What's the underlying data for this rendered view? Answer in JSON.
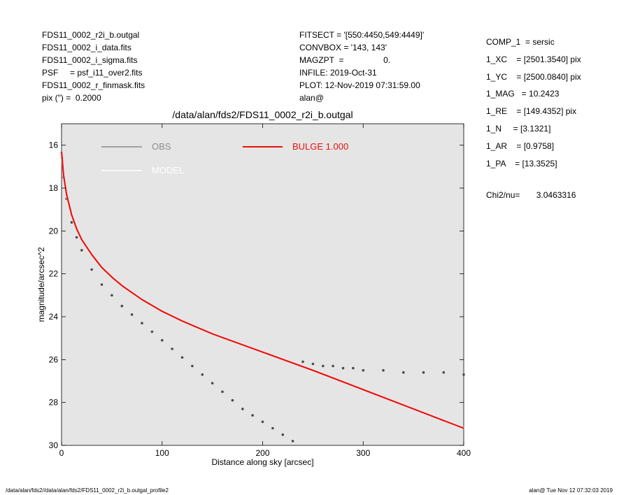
{
  "header_left": [
    "FDS11_0002_r2i_b.outgal",
    "FDS11_0002_i_data.fits",
    "FDS11_0002_i_sigma.fits",
    "PSF     = psf_i11_over2.fits",
    "FDS11_0002_r_finmask.fits",
    "pix (\") =  0.2000"
  ],
  "header_mid": [
    "FITSECT = '[550:4450,549:4449]'",
    "CONVBOX = '143, 143'",
    "MAGZPT  =                 0.",
    "INFILE: 2019-Oct-31",
    "PLOT: 12-Nov-2019 07:31:59.00",
    "alan@"
  ],
  "header_right": [
    "COMP_1  = sersic",
    "1_XC    = [2501.3540] pix",
    "1_YC    = [2500.0840] pix",
    "1_MAG   = 10.2423",
    "1_RE    = [149.4352] pix",
    "1_N     = [3.1321]",
    "1_AR    = [0.9758]",
    "1_PA    = [13.3525]"
  ],
  "chi2": "Chi2/nu=       3.0463316",
  "footer_left": "/data/alan/fds2//data/alan/fds2/FDS11_0002_r2i_b.outgal_profile2",
  "footer_right": "alan@  Tue Nov 12 07:32:03 2019",
  "colors": {
    "obs": "#4a4a4a",
    "model": "#ffffff",
    "bulge": "#e8100c",
    "background": "#e5e5e5"
  },
  "chart_data": {
    "type": "scatter",
    "title": "/data/alan/fds2/FDS11_0002_r2i_b.outgal",
    "xlabel": "Distance along sky [arcsec]",
    "ylabel": "magnitude/arcsec^2",
    "xlim": [
      0,
      400
    ],
    "ylim": [
      30,
      15
    ],
    "y_inverted": true,
    "xticks": [
      0,
      100,
      200,
      300,
      400
    ],
    "yticks": [
      16,
      18,
      20,
      22,
      24,
      26,
      28,
      30
    ],
    "grid": false,
    "legend": [
      {
        "label": "OBS",
        "color": "#8c8c8c"
      },
      {
        "label": "MODEL",
        "color": "#ffffff"
      },
      {
        "label": "BULGE  1.000",
        "color": "#e8100c"
      }
    ],
    "series": [
      {
        "name": "OBS",
        "style": "points",
        "x": [
          0.5,
          2,
          5,
          10,
          15,
          20,
          30,
          40,
          50,
          60,
          70,
          80,
          90,
          100,
          110,
          120,
          130,
          140,
          150,
          160,
          170,
          180,
          190,
          200,
          210,
          220,
          230,
          240,
          250,
          260,
          270,
          280,
          290,
          300,
          320,
          340,
          360,
          380,
          400
        ],
        "y": [
          16.6,
          17.5,
          18.5,
          19.6,
          20.3,
          20.9,
          21.8,
          22.5,
          23.0,
          23.5,
          23.9,
          24.3,
          24.7,
          25.1,
          25.5,
          25.9,
          26.3,
          26.7,
          27.1,
          27.5,
          27.9,
          28.3,
          28.6,
          28.9,
          29.2,
          29.5,
          29.8,
          26.1,
          26.2,
          26.3,
          26.3,
          26.4,
          26.4,
          26.5,
          26.5,
          26.6,
          26.6,
          26.6,
          26.7
        ]
      },
      {
        "name": "MODEL",
        "style": "line",
        "x": [
          0,
          2,
          5,
          10,
          15,
          20,
          30,
          40,
          50,
          60,
          80,
          100,
          120,
          150,
          200,
          250,
          300,
          350,
          400
        ],
        "y": [
          16.3,
          17.4,
          18.3,
          19.25,
          19.9,
          20.4,
          21.1,
          21.7,
          22.15,
          22.55,
          23.2,
          23.75,
          24.2,
          24.8,
          25.65,
          26.5,
          27.4,
          28.3,
          29.2
        ]
      },
      {
        "name": "BULGE  1.000",
        "style": "line",
        "x": [
          0,
          2,
          5,
          10,
          15,
          20,
          30,
          40,
          50,
          60,
          80,
          100,
          120,
          150,
          200,
          250,
          300,
          350,
          400
        ],
        "y": [
          16.3,
          17.4,
          18.3,
          19.25,
          19.9,
          20.4,
          21.1,
          21.7,
          22.15,
          22.55,
          23.2,
          23.75,
          24.2,
          24.8,
          25.65,
          26.5,
          27.4,
          28.3,
          29.2
        ]
      }
    ]
  }
}
